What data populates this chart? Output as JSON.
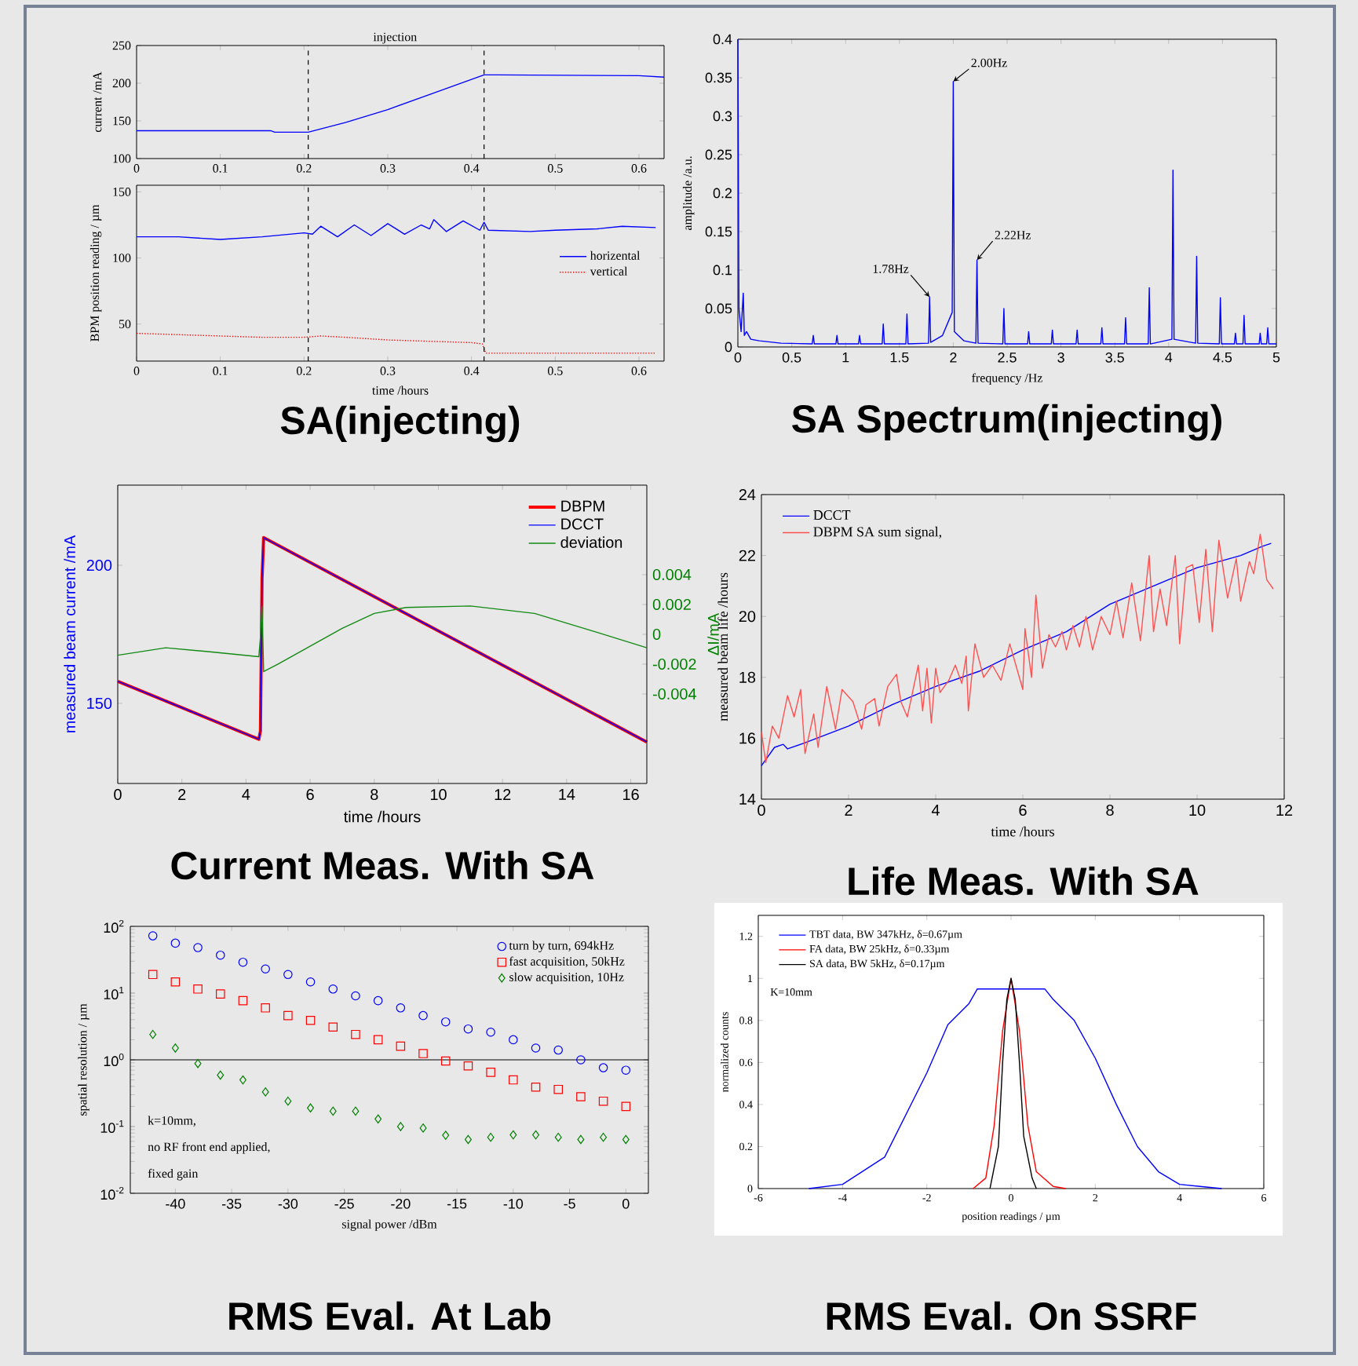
{
  "chart_data": [
    {
      "type": "line",
      "x": [
        0,
        0.16,
        0.165,
        0.205,
        0.25,
        0.3,
        0.35,
        0.415,
        0.43,
        0.6,
        0.63
      ],
      "series": [
        {
          "color": "#0000ff",
          "values": [
            137,
            137,
            135,
            135,
            148,
            165,
            185,
            211,
            211,
            210,
            208
          ]
        }
      ],
      "xlim": [
        0,
        0.63
      ],
      "ylim": [
        100,
        250
      ],
      "xticks": [
        0,
        0.1,
        0.2,
        0.3,
        0.4,
        0.5,
        0.6
      ],
      "yticks": [
        100,
        150,
        200,
        250
      ],
      "ylabel": "current /mA",
      "ref_lines": [
        {
          "axis": "x",
          "value": 0.205,
          "line_style": "dashed"
        },
        {
          "axis": "x",
          "value": 0.415,
          "line_style": "dashed"
        }
      ],
      "annotations": [
        "injection"
      ]
    },
    {
      "type": "line",
      "title": "SA(injecting)",
      "xlabel": "time /hours",
      "ylabel": "BPM position reading / µm",
      "legend": "right",
      "series": [
        {
          "name": "horizental",
          "color": "#0000ff",
          "x": [
            0,
            0.05,
            0.1,
            0.15,
            0.2,
            0.21,
            0.22,
            0.24,
            0.26,
            0.28,
            0.3,
            0.32,
            0.34,
            0.35,
            0.355,
            0.37,
            0.39,
            0.41,
            0.415,
            0.42,
            0.47,
            0.5,
            0.55,
            0.58,
            0.62
          ],
          "values": [
            116,
            116,
            114,
            116,
            119,
            118,
            124,
            116,
            125,
            117,
            126,
            118,
            125,
            122,
            129,
            120,
            128,
            121,
            127,
            121,
            120,
            121,
            122,
            124,
            123
          ]
        },
        {
          "name": "vertical",
          "color": "#ff0000",
          "line_style": "dotted",
          "x": [
            0,
            0.05,
            0.1,
            0.15,
            0.2,
            0.22,
            0.25,
            0.3,
            0.35,
            0.4,
            0.413,
            0.417,
            0.5,
            0.62
          ],
          "values": [
            43,
            42,
            41,
            40,
            40,
            41,
            40,
            38,
            37,
            36,
            35,
            28,
            28,
            28
          ]
        }
      ],
      "xlim": [
        0,
        0.63
      ],
      "ylim": [
        22,
        155
      ],
      "xticks": [
        0,
        0.1,
        0.2,
        0.3,
        0.4,
        0.5,
        0.6
      ],
      "yticks": [
        50,
        100,
        150
      ],
      "ref_lines": [
        {
          "axis": "x",
          "value": 0.205,
          "line_style": "dashed"
        },
        {
          "axis": "x",
          "value": 0.415,
          "line_style": "dashed"
        }
      ]
    },
    {
      "type": "line",
      "title": "SA Spectrum(injecting)",
      "xlabel": "frequency /Hz",
      "ylabel": "amplitude /a.u.",
      "x": [
        0,
        0.01,
        0.03,
        0.05,
        0.06,
        0.08,
        0.12,
        0.2,
        0.4,
        0.69,
        0.7,
        0.71,
        0.91,
        0.92,
        0.93,
        1.12,
        1.13,
        1.14,
        1.34,
        1.35,
        1.36,
        1.56,
        1.57,
        1.58,
        1.77,
        1.78,
        1.79,
        1.9,
        1.99,
        2.0,
        2.01,
        2.1,
        2.21,
        2.22,
        2.23,
        2.46,
        2.47,
        2.48,
        2.69,
        2.7,
        2.71,
        2.91,
        2.92,
        2.93,
        3.14,
        3.15,
        3.16,
        3.37,
        3.38,
        3.39,
        3.59,
        3.6,
        3.61,
        3.81,
        3.82,
        3.83,
        4.03,
        4.04,
        4.05,
        4.25,
        4.26,
        4.27,
        4.47,
        4.48,
        4.49,
        4.61,
        4.62,
        4.63,
        4.69,
        4.7,
        4.71,
        4.84,
        4.85,
        4.86,
        4.91,
        4.92,
        4.93,
        5.0
      ],
      "series": [
        {
          "color": "#0000ff",
          "values": [
            0.4,
            0.05,
            0.02,
            0.07,
            0.015,
            0.02,
            0.01,
            0.008,
            0.005,
            0.004,
            0.015,
            0.004,
            0.004,
            0.015,
            0.004,
            0.004,
            0.015,
            0.004,
            0.004,
            0.03,
            0.004,
            0.004,
            0.043,
            0.004,
            0.005,
            0.065,
            0.006,
            0.015,
            0.045,
            0.345,
            0.02,
            0.008,
            0.005,
            0.113,
            0.005,
            0.004,
            0.05,
            0.004,
            0.004,
            0.02,
            0.004,
            0.004,
            0.022,
            0.004,
            0.004,
            0.022,
            0.004,
            0.004,
            0.025,
            0.004,
            0.004,
            0.038,
            0.004,
            0.004,
            0.077,
            0.004,
            0.01,
            0.23,
            0.01,
            0.005,
            0.118,
            0.005,
            0.004,
            0.064,
            0.004,
            0.004,
            0.018,
            0.004,
            0.004,
            0.041,
            0.004,
            0.004,
            0.018,
            0.004,
            0.004,
            0.025,
            0.004,
            0.004
          ]
        }
      ],
      "xlim": [
        0,
        5
      ],
      "ylim": [
        0,
        0.4
      ],
      "xticks": [
        0,
        0.5,
        1,
        1.5,
        2,
        2.5,
        3,
        3.5,
        4,
        4.5,
        5
      ],
      "yticks": [
        0,
        0.05,
        0.1,
        0.15,
        0.2,
        0.25,
        0.3,
        0.35,
        0.4
      ],
      "annotations": [
        {
          "text": "2.00Hz",
          "x": 2.0,
          "y": 0.345
        },
        {
          "text": "2.22Hz",
          "x": 2.22,
          "y": 0.113
        },
        {
          "text": "1.78Hz",
          "x": 1.78,
          "y": 0.065
        }
      ]
    },
    {
      "type": "line",
      "title": "Current Meas. With SA",
      "xlabel": "time /hours",
      "ylabel": "measured beam current /mA",
      "y2label": "ΔI/mA",
      "legend": "top right",
      "series": [
        {
          "name": "DBPM",
          "color": "#ff0000",
          "x": [
            0,
            4.4,
            4.45,
            4.5,
            4.55,
            16.5
          ],
          "values": [
            158,
            137,
            140,
            195,
            210,
            136
          ]
        },
        {
          "name": "DCCT",
          "color": "#0000ff",
          "x": [
            0,
            4.4,
            4.45,
            4.5,
            4.55,
            16.5
          ],
          "values": [
            158,
            137,
            140,
            195,
            210,
            136
          ]
        },
        {
          "name": "deviation",
          "color": "#138a13",
          "axis": "y2",
          "x": [
            0,
            1.5,
            3,
            4.4,
            4.45,
            4.5,
            4.55,
            5,
            6,
            7,
            8,
            9,
            11,
            13,
            15,
            16.5
          ],
          "values": [
            -0.0014,
            -0.0009,
            -0.0012,
            -0.0015,
            -0.0002,
            0.0019,
            -0.0025,
            -0.002,
            -0.0008,
            0.0004,
            0.0014,
            0.0018,
            0.0019,
            0.0014,
            0.0001,
            -0.0009
          ]
        }
      ],
      "xlim": [
        0,
        16.5
      ],
      "ylim": [
        121,
        229
      ],
      "xticks": [
        0,
        2,
        4,
        6,
        8,
        10,
        12,
        14,
        16
      ],
      "yticks": [
        150,
        200
      ],
      "y2lim": [
        -0.01,
        0.01
      ],
      "y2ticks": [
        -0.004,
        -0.002,
        0,
        0.002,
        0.004
      ]
    },
    {
      "type": "line",
      "title": "Life Meas. With SA",
      "xlabel": "time /hours",
      "ylabel": "measured beam life /hours",
      "legend": "top left",
      "series": [
        {
          "name": "DCCT",
          "color": "#0000ff",
          "x": [
            0,
            0.3,
            0.5,
            0.6,
            1,
            2,
            3,
            4,
            5,
            6,
            7,
            8,
            9,
            10,
            11,
            11.5,
            11.7
          ],
          "values": [
            15.1,
            15.7,
            15.8,
            15.65,
            15.85,
            16.4,
            17.1,
            17.7,
            18.2,
            18.9,
            19.5,
            20.4,
            21.0,
            21.6,
            22.0,
            22.3,
            22.4
          ]
        },
        {
          "name": "DBPM SA sum signal,",
          "color": "#ff5050",
          "x": [
            0,
            0.1,
            0.25,
            0.4,
            0.6,
            0.75,
            0.9,
            1.0,
            1.2,
            1.3,
            1.5,
            1.7,
            1.85,
            2.1,
            2.3,
            2.4,
            2.6,
            2.7,
            2.9,
            3.1,
            3.2,
            3.35,
            3.6,
            3.7,
            3.8,
            3.9,
            4.0,
            4.1,
            4.3,
            4.45,
            4.6,
            4.7,
            4.75,
            4.9,
            5.1,
            5.3,
            5.5,
            5.7,
            5.8,
            6.0,
            6.05,
            6.2,
            6.3,
            6.45,
            6.6,
            6.75,
            6.9,
            7.0,
            7.15,
            7.3,
            7.45,
            7.6,
            7.8,
            8.0,
            8.15,
            8.3,
            8.5,
            8.7,
            8.9,
            9.0,
            9.15,
            9.3,
            9.5,
            9.6,
            9.75,
            9.9,
            10.05,
            10.2,
            10.35,
            10.5,
            10.7,
            10.9,
            11.0,
            11.2,
            11.3,
            11.45,
            11.6,
            11.75
          ],
          "values": [
            16.2,
            15.2,
            16.4,
            16.0,
            17.4,
            16.7,
            17.6,
            15.5,
            16.8,
            15.7,
            17.7,
            16.3,
            17.6,
            17.2,
            16.3,
            17.1,
            17.3,
            16.4,
            17.7,
            18.1,
            17.2,
            16.7,
            18.4,
            16.9,
            18.3,
            16.5,
            18.3,
            17.5,
            17.9,
            18.4,
            17.8,
            18.7,
            16.9,
            19.1,
            18.0,
            18.4,
            17.9,
            19.1,
            18.6,
            17.6,
            19.6,
            18.0,
            20.7,
            18.3,
            19.4,
            19.0,
            19.5,
            18.9,
            19.7,
            19.0,
            20.0,
            18.9,
            20.0,
            19.4,
            20.5,
            19.3,
            21.1,
            19.2,
            22.0,
            19.5,
            20.9,
            19.7,
            22.0,
            19.1,
            21.6,
            21.7,
            19.8,
            22.2,
            19.5,
            22.5,
            20.6,
            21.9,
            20.5,
            21.8,
            21.4,
            22.7,
            21.2,
            20.9
          ]
        }
      ],
      "xlim": [
        0,
        12
      ],
      "ylim": [
        14,
        24
      ],
      "xticks": [
        0,
        2,
        4,
        6,
        8,
        10,
        12
      ],
      "yticks": [
        14,
        16,
        18,
        20,
        22,
        24
      ]
    },
    {
      "type": "scatter",
      "title": "RMS Eval. At Lab",
      "xlabel": "signal power /dBm",
      "ylabel": "spatial resolution / µm",
      "legend": "top right",
      "log": "y",
      "x": [
        -42,
        -40,
        -38,
        -36,
        -34,
        -32,
        -30,
        -28,
        -26,
        -24,
        -22,
        -20,
        -18,
        -16,
        -14,
        -12,
        -10,
        -8,
        -6,
        -4,
        -2,
        0
      ],
      "series": [
        {
          "name": "turn by turn, 694kHz",
          "color": "#0000ff",
          "marker": "circle",
          "values": [
            72,
            56,
            48,
            37,
            29,
            23,
            19,
            14.7,
            11.5,
            9.1,
            7.7,
            6.0,
            4.6,
            3.7,
            2.9,
            2.6,
            2.0,
            1.5,
            1.4,
            1.0,
            0.76,
            0.7
          ]
        },
        {
          "name": "fast acquisition, 50kHz",
          "color": "#ff0000",
          "marker": "square",
          "values": [
            19,
            14.7,
            11.5,
            9.7,
            7.7,
            6.0,
            4.6,
            3.9,
            3.1,
            2.4,
            2.0,
            1.6,
            1.24,
            0.96,
            0.81,
            0.65,
            0.5,
            0.39,
            0.36,
            0.28,
            0.24,
            0.2
          ]
        },
        {
          "name": "slow acquisition, 10Hz",
          "color": "#008000",
          "marker": "diamond",
          "values": [
            2.4,
            1.5,
            0.88,
            0.59,
            0.5,
            0.33,
            0.24,
            0.19,
            0.17,
            0.17,
            0.13,
            0.1,
            0.095,
            0.074,
            0.064,
            0.069,
            0.075,
            0.075,
            0.069,
            0.064,
            0.069,
            0.064
          ]
        }
      ],
      "xlim": [
        -44,
        2
      ],
      "ylim": [
        0.01,
        100
      ],
      "xticks": [
        -40,
        -35,
        -30,
        -25,
        -20,
        -15,
        -10,
        -5,
        0
      ],
      "yticks": [
        {
          "value": 0.01,
          "label": "10$^{-2}$"
        },
        {
          "value": 0.1,
          "label": "10$^{-1}$"
        },
        {
          "value": 1,
          "label": "10$^{0}$"
        },
        {
          "value": 10,
          "label": "10$^{1}$"
        },
        {
          "value": 100,
          "label": "10$^{2}$"
        }
      ],
      "ref_lines": [
        {
          "axis": "y",
          "value": 1,
          "line_style": "solid"
        }
      ],
      "annotations": [
        "k=10mm,",
        "no RF front end applied,",
        "fixed gain"
      ]
    },
    {
      "type": "line",
      "title": "RMS Eval. On SSRF",
      "xlabel": "position readings / µm",
      "ylabel": "normalized counts",
      "legend": "top left",
      "series": [
        {
          "name": "TBT data, BW 347kHz, δ=0.67µm",
          "color": "#0000ff",
          "x": [
            -4.8,
            -4,
            -3,
            -2.5,
            -2,
            -1.5,
            -1,
            -0.8,
            0,
            0.8,
            1,
            1.5,
            2,
            2.5,
            3,
            3.5,
            4,
            5
          ],
          "values": [
            0,
            0.02,
            0.15,
            0.35,
            0.55,
            0.78,
            0.88,
            0.95,
            0.95,
            0.95,
            0.9,
            0.8,
            0.62,
            0.4,
            0.2,
            0.08,
            0.02,
            0
          ]
        },
        {
          "name": "FA  data, BW 25kHz, δ=0.33µm",
          "color": "#ff0000",
          "x": [
            -0.9,
            -0.6,
            -0.4,
            -0.2,
            0,
            0.2,
            0.4,
            0.6,
            1.0,
            1.3
          ],
          "values": [
            0,
            0.05,
            0.3,
            0.75,
            1.0,
            0.75,
            0.3,
            0.08,
            0.01,
            0
          ]
        },
        {
          "name": "SA  data, BW 5kHz, δ=0.17µm",
          "color": "#000000",
          "x": [
            -0.5,
            -0.3,
            -0.2,
            -0.1,
            0,
            0.1,
            0.2,
            0.3,
            0.5,
            0.6
          ],
          "values": [
            0,
            0.2,
            0.6,
            0.9,
            1.0,
            0.9,
            0.6,
            0.25,
            0.05,
            0
          ]
        }
      ],
      "xlim": [
        -6,
        6
      ],
      "ylim": [
        0,
        1.3
      ],
      "xticks": [
        -6,
        -4,
        -2,
        0,
        2,
        4,
        6
      ],
      "yticks": [
        0,
        0.2,
        0.4,
        0.6,
        0.8,
        1,
        1.2
      ],
      "annotations": [
        "K=10mm"
      ]
    }
  ]
}
